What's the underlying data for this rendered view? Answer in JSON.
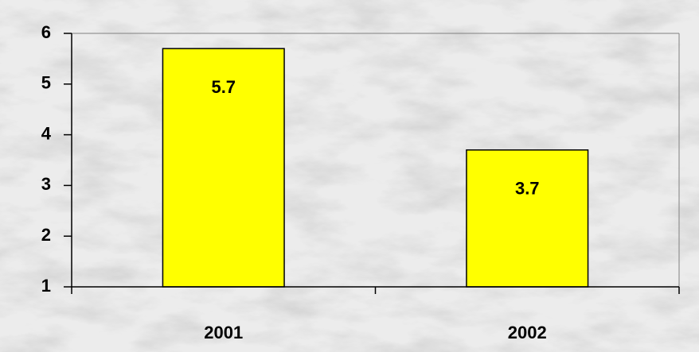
{
  "chart_data": {
    "type": "bar",
    "categories": [
      "2001",
      "2002"
    ],
    "values": [
      5.7,
      3.7
    ],
    "color": "#ffff00",
    "ylim": [
      1,
      6
    ],
    "yticks": [
      1,
      2,
      3,
      4,
      5,
      6
    ]
  }
}
